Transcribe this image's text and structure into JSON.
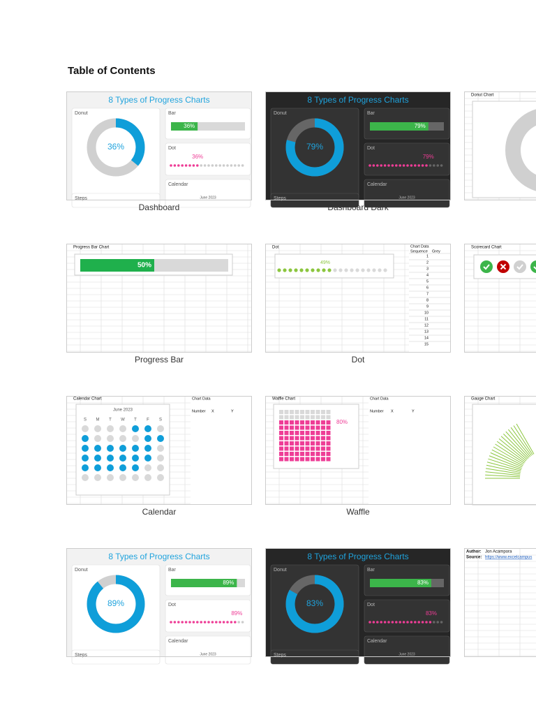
{
  "header": {
    "title": "Table of Contents"
  },
  "tiles": [
    {
      "kind": "dashboard",
      "theme": "light",
      "title": "8 Types of Progress Charts",
      "labels": [
        "Donut",
        "Bar",
        "Dot",
        "Calendar",
        "Steps"
      ],
      "value": 36,
      "value_label": "36%",
      "month": "June 2023",
      "caption": "Dashboard"
    },
    {
      "kind": "dashboard",
      "theme": "dark",
      "title": "8 Types of Progress Charts",
      "labels": [
        "Donut",
        "Bar",
        "Dot",
        "Calendar",
        "Steps"
      ],
      "value": 79,
      "value_label": "79%",
      "month": "June 2023",
      "caption": "Dashboard Dark"
    },
    {
      "kind": "donut",
      "label": "Donut Chart"
    },
    {
      "kind": "progress",
      "label": "Progress Bar Chart",
      "value": 50,
      "value_label": "50%",
      "caption": "Progress Bar"
    },
    {
      "kind": "dot",
      "label": "Dot",
      "value": 49,
      "value_label": "49%",
      "table_title": "Chart Data",
      "columns": [
        "Sequence",
        "Grey"
      ],
      "sequence": [
        1,
        2,
        3,
        4,
        5,
        6,
        7,
        8,
        9,
        10,
        11,
        12,
        13,
        14,
        15
      ],
      "caption": "Dot"
    },
    {
      "kind": "scorecard",
      "label": "Scorecard Chart"
    },
    {
      "kind": "calendar",
      "label": "Calendar Chart",
      "month": "June 2023",
      "weekdays": [
        "S",
        "M",
        "T",
        "W",
        "T",
        "F",
        "S"
      ],
      "table_title": "Chart Data",
      "columns": [
        "Number",
        "X",
        "Y"
      ],
      "caption": "Calendar"
    },
    {
      "kind": "waffle",
      "label": "Waffle Chart",
      "value": 80,
      "value_label": "80%",
      "table_title": "Chart Data",
      "columns": [
        "Number",
        "X",
        "Y"
      ],
      "caption": "Waffle"
    },
    {
      "kind": "gauge",
      "label": "Gauge Chart"
    },
    {
      "kind": "dashboard",
      "theme": "light",
      "title": "8 Types of Progress Charts",
      "labels": [
        "Donut",
        "Bar",
        "Dot",
        "Calendar",
        "Steps"
      ],
      "value": 89,
      "value_label": "89%",
      "month": "June 2023"
    },
    {
      "kind": "dashboard",
      "theme": "dark",
      "title": "8 Types of Progress Charts",
      "labels": [
        "Donut",
        "Bar",
        "Dot",
        "Calendar",
        "Steps"
      ],
      "value": 83,
      "value_label": "83%",
      "month": "June 2023"
    },
    {
      "kind": "info",
      "author_label": "Author:",
      "author": "Jon Acampora",
      "source_label": "Source:",
      "source": "https://www.excelcampus"
    }
  ]
}
